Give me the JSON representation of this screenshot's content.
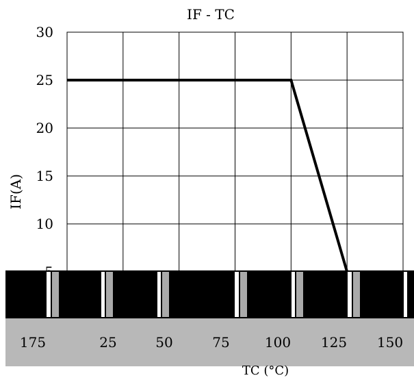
{
  "chart_data": {
    "type": "line",
    "title": "IF - TC",
    "xlabel": "TC (°C)",
    "ylabel": "IF(A)",
    "xlim": [
      0,
      150
    ],
    "ylim": [
      0,
      30
    ],
    "x_ticks": [
      "25",
      "50",
      "75",
      "100",
      "125",
      "150"
    ],
    "y_ticks": [
      "5",
      "10",
      "15",
      "20",
      "25",
      "30"
    ],
    "grid": true,
    "series": [
      {
        "x": [
          0,
          100,
          125
        ],
        "y": [
          25,
          25,
          5
        ]
      }
    ]
  },
  "artifact": {
    "band_color": "#b8b8b8",
    "stripe_color": "#000000",
    "tick_labels": [
      "175",
      "25",
      "50",
      "75",
      "100",
      "125",
      "150"
    ]
  }
}
